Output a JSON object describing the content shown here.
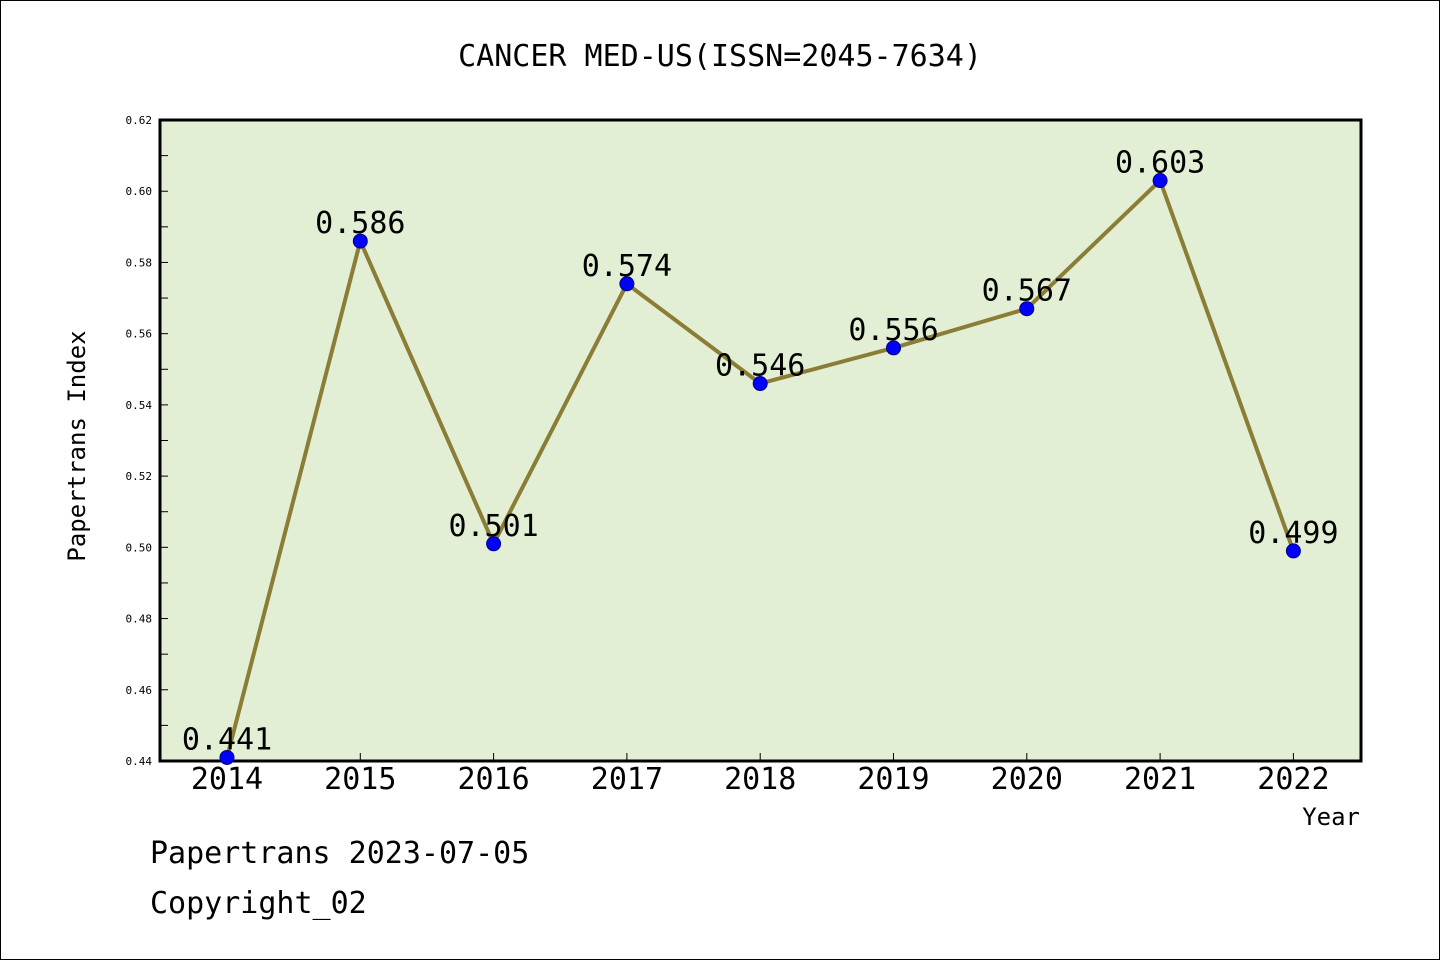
{
  "chart_data": {
    "type": "line",
    "title": "CANCER MED-US(ISSN=2045-7634)",
    "xlabel": "Year",
    "ylabel": "Papertrans Index",
    "categories": [
      "2014",
      "2015",
      "2016",
      "2017",
      "2018",
      "2019",
      "2020",
      "2021",
      "2022"
    ],
    "series": [
      {
        "values": [
          0.441,
          0.586,
          0.501,
          0.574,
          0.546,
          0.556,
          0.567,
          0.603,
          0.499
        ],
        "data_labels": [
          "0.441",
          "0.586",
          "0.501",
          "0.574",
          "0.546",
          "0.556",
          "0.567",
          "0.603",
          "0.499"
        ]
      }
    ],
    "ylim": [
      0.44,
      0.62
    ],
    "yticks": [
      0.44,
      0.46,
      0.48,
      0.5,
      0.52,
      0.54,
      0.56,
      0.58,
      0.6,
      0.62
    ],
    "ytick_labels": [
      "0.44",
      "0.46",
      "0.48",
      "0.50",
      "0.52",
      "0.54",
      "0.56",
      "0.58",
      "0.60",
      "0.62"
    ],
    "grid": false,
    "colors": {
      "plot_background": "#e2efd4",
      "line": "#8b7d36",
      "marker": "#0000ff"
    }
  },
  "footer": {
    "line1": "Papertrans 2023-07-05",
    "line2": "Copyright_02"
  }
}
